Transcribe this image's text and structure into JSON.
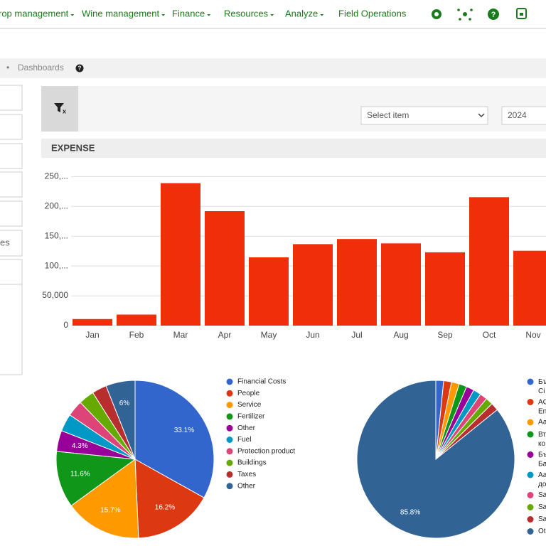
{
  "nav": [
    "rop management",
    "Wine management",
    "Finance",
    "Resources",
    "Analyze",
    "Field Operations"
  ],
  "breadcrumb": "Dashboards",
  "sidebar_fragment": "es",
  "filters": {
    "select": "Select item",
    "year": "2024"
  },
  "chart_data": [
    {
      "type": "bar",
      "title": "EXPENSE",
      "categories": [
        "Jan",
        "Feb",
        "Mar",
        "Apr",
        "May",
        "Jun",
        "Jul",
        "Aug",
        "Sep",
        "Oct",
        "Nov"
      ],
      "values": [
        11000,
        18500,
        239000,
        192000,
        114500,
        136700,
        145300,
        138000,
        123000,
        215500,
        125600
      ],
      "color": "#f02f0a",
      "ylim": [
        0,
        260000
      ],
      "yticks": [
        0,
        {
          "value": 50000,
          "label": "50,000"
        },
        {
          "value": 100000,
          "label": "100,..."
        },
        {
          "value": 150000,
          "label": "150,..."
        },
        {
          "value": 200000,
          "label": "200,..."
        },
        {
          "value": 250000,
          "label": "250,..."
        }
      ],
      "grid": true
    },
    {
      "type": "pie",
      "categories": [
        "Financial Costs",
        "People",
        "Service",
        "Fertilizer",
        "Other",
        "Fuel",
        "Protection product",
        "Buildings",
        "Taxes",
        "Other"
      ],
      "values": [
        33.1,
        16.2,
        15.7,
        11.6,
        4.3,
        3.6,
        3.3,
        3.2,
        3.0,
        6
      ],
      "value_labels": [
        "33.1%",
        "16.2%",
        "15.7%",
        "11.6%",
        "4.3%",
        null,
        null,
        null,
        null,
        "6%"
      ],
      "colors": [
        "#3366cc",
        "#dc3912",
        "#ff9900",
        "#109618",
        "#990099",
        "#0099c6",
        "#dd4477",
        "#66aa00",
        "#b82e2e",
        "#316395"
      ]
    },
    {
      "type": "pie",
      "categories": [
        "Бъ Сі",
        "AG En",
        "Аа",
        "Вт ко",
        "Бъ Ба",
        "Аа до",
        "Sa",
        "Sa",
        "Sa",
        "Ot"
      ],
      "values": [
        1.6,
        1.6,
        1.6,
        1.6,
        1.6,
        1.6,
        1.5,
        1.5,
        1.6,
        85.8
      ],
      "value_labels": [
        null,
        null,
        null,
        null,
        null,
        null,
        null,
        null,
        null,
        "85.8%"
      ],
      "colors": [
        "#3366cc",
        "#dc3912",
        "#ff9900",
        "#109618",
        "#990099",
        "#0099c6",
        "#dd4477",
        "#66aa00",
        "#b82e2e",
        "#316395"
      ]
    }
  ]
}
